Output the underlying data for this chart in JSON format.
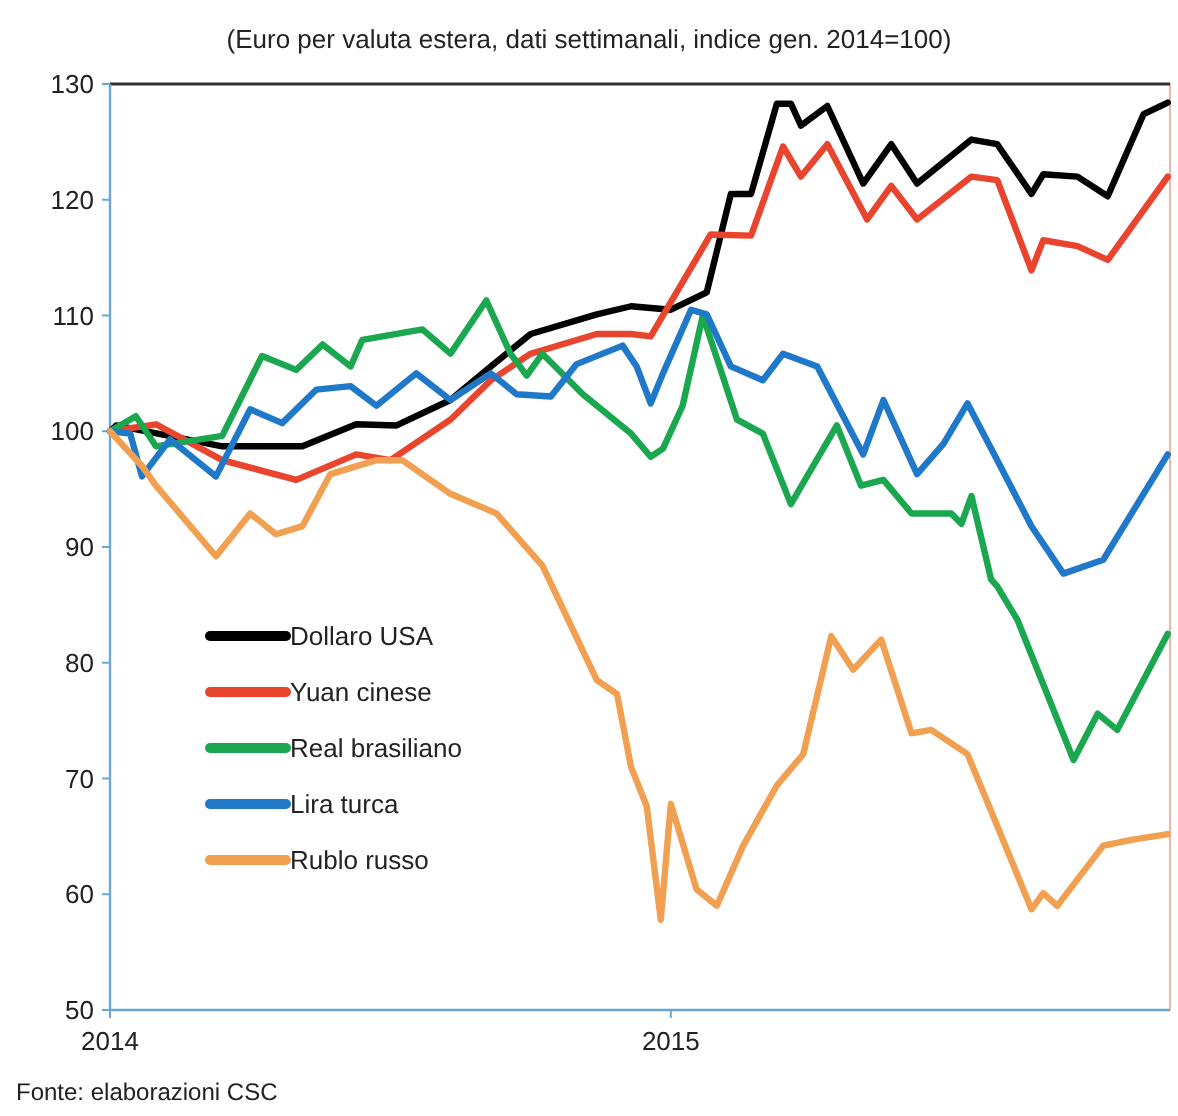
{
  "chart_data": {
    "type": "line",
    "title": "(Euro per valuta estera, dati settimanali, indice gen. 2014=100)",
    "xlim": [
      2014,
      2015.89
    ],
    "xticks": [
      2014,
      2015
    ],
    "ylim": [
      50,
      130
    ],
    "yticks": [
      50,
      60,
      70,
      80,
      90,
      100,
      110,
      120,
      130
    ],
    "grid": false,
    "legend": "left",
    "line_style": "solid",
    "marker": "none",
    "annotations": [
      "Fonte: elaborazioni CSC"
    ],
    "series": [
      {
        "name": "Dollaro USA",
        "color": "#000000",
        "x": [
          2014,
          2014.011,
          2014.2,
          2014.343,
          2014.439,
          2014.511,
          2014.607,
          2014.679,
          2014.75,
          2014.868,
          2014.929,
          2015.0,
          2015.064,
          2015.107,
          2015.129,
          2015.143,
          2015.189,
          2015.214,
          2015.232,
          2015.279,
          2015.343,
          2015.393,
          2015.439,
          2015.536,
          2015.582,
          2015.643,
          2015.664,
          2015.725,
          2015.779,
          2015.843,
          2015.886
        ],
        "values": [
          100,
          100.5,
          98.7,
          98.7,
          100.6,
          100.5,
          102.7,
          105.6,
          108.4,
          110.1,
          110.8,
          110.5,
          112,
          120.5,
          120.5,
          120.5,
          128.3,
          128.3,
          126.4,
          128.1,
          121.4,
          124.8,
          121.4,
          125.2,
          124.8,
          120.5,
          122.2,
          122,
          120.3,
          127.4,
          128.4
        ]
      },
      {
        "name": "Yuan cinese",
        "color": "#e8442e",
        "x": [
          2014,
          2014.082,
          2014.2,
          2014.332,
          2014.439,
          2014.5,
          2014.607,
          2014.679,
          2014.75,
          2014.868,
          2014.929,
          2014.964,
          2015.071,
          2015.143,
          2015.2,
          2015.232,
          2015.279,
          2015.35,
          2015.393,
          2015.439,
          2015.536,
          2015.582,
          2015.643,
          2015.664,
          2015.725,
          2015.779,
          2015.886
        ],
        "values": [
          100,
          100.6,
          97.5,
          95.8,
          98,
          97.5,
          101,
          104.4,
          106.7,
          108.4,
          108.4,
          108.2,
          117,
          116.9,
          124.6,
          122,
          124.8,
          118.3,
          121.2,
          118.3,
          122,
          121.7,
          113.9,
          116.5,
          116,
          114.8,
          122
        ]
      },
      {
        "name": "Real brasiliano",
        "color": "#1aa750",
        "x": [
          2014,
          2014.046,
          2014.082,
          2014.2,
          2014.271,
          2014.332,
          2014.379,
          2014.429,
          2014.45,
          2014.557,
          2014.607,
          2014.671,
          2014.714,
          2014.743,
          2014.771,
          2014.843,
          2014.929,
          2014.964,
          2014.986,
          2015.021,
          2015.057,
          2015.118,
          2015.164,
          2015.214,
          2015.296,
          2015.339,
          2015.379,
          2015.429,
          2015.5,
          2015.518,
          2015.536,
          2015.571,
          2015.582,
          2015.618,
          2015.718,
          2015.761,
          2015.796,
          2015.886
        ],
        "values": [
          100,
          101.3,
          98.7,
          99.6,
          106.5,
          105.3,
          107.5,
          105.6,
          107.9,
          108.8,
          106.7,
          111.3,
          106.7,
          104.8,
          106.7,
          103.2,
          99.8,
          97.8,
          98.5,
          102.2,
          110,
          101,
          99.8,
          93.7,
          100.5,
          95.3,
          95.8,
          92.9,
          92.9,
          92,
          94.4,
          87.2,
          86.6,
          83.7,
          71.6,
          75.6,
          74.2,
          82.5
        ]
      },
      {
        "name": "Lira turca",
        "color": "#1f78c8",
        "x": [
          2014,
          2014.036,
          2014.057,
          2014.107,
          2014.189,
          2014.25,
          2014.307,
          2014.368,
          2014.429,
          2014.475,
          2014.546,
          2014.607,
          2014.679,
          2014.725,
          2014.786,
          2014.832,
          2014.914,
          2014.939,
          2014.964,
          2014.986,
          2015.036,
          2015.064,
          2015.107,
          2015.164,
          2015.2,
          2015.261,
          2015.343,
          2015.379,
          2015.439,
          2015.486,
          2015.529,
          2015.582,
          2015.643,
          2015.7,
          2015.771,
          2015.886
        ],
        "values": [
          100,
          99.8,
          96.1,
          99.3,
          96.1,
          101.9,
          100.7,
          103.6,
          103.9,
          102.2,
          105,
          102.7,
          105,
          103.2,
          103,
          105.8,
          107.4,
          105.6,
          102.4,
          105,
          110.5,
          110.1,
          105.6,
          104.4,
          106.7,
          105.6,
          98,
          102.7,
          96.3,
          98.9,
          102.4,
          97.5,
          91.8,
          87.7,
          88.9,
          98
        ]
      },
      {
        "name": "Rublo russo",
        "color": "#f0a050",
        "x": [
          2014,
          2014.057,
          2014.082,
          2014.189,
          2014.25,
          2014.296,
          2014.343,
          2014.393,
          2014.475,
          2014.521,
          2014.607,
          2014.689,
          2014.771,
          2014.868,
          2014.904,
          2014.929,
          2014.957,
          2014.982,
          2015.0,
          2015.046,
          2015.082,
          2015.129,
          2015.189,
          2015.236,
          2015.286,
          2015.325,
          2015.375,
          2015.429,
          2015.464,
          2015.529,
          2015.582,
          2015.643,
          2015.664,
          2015.689,
          2015.771,
          2015.821,
          2015.886
        ],
        "values": [
          100,
          97,
          95.3,
          89.2,
          92.9,
          91.1,
          91.8,
          96.3,
          97.5,
          97.5,
          94.6,
          92.9,
          88.4,
          78.5,
          77.3,
          71,
          67.6,
          57.8,
          67.8,
          60.4,
          59,
          64.2,
          69.4,
          72.1,
          82.3,
          79.4,
          82,
          73.9,
          74.2,
          72.1,
          65.9,
          58.7,
          60.1,
          59,
          64.2,
          64.7,
          65.2
        ]
      }
    ]
  }
}
